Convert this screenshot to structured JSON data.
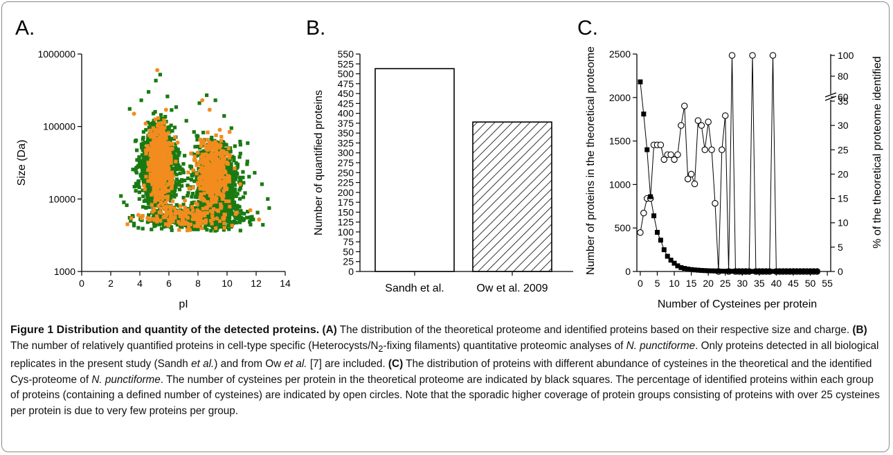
{
  "chart_data": [
    {
      "panel": "A.",
      "type": "scatter",
      "xlabel": "pI",
      "ylabel": "Size (Da)",
      "xlim": [
        0,
        14
      ],
      "ylim": [
        1000,
        1000000
      ],
      "yscale": "log",
      "xticks": [
        "0",
        "2",
        "4",
        "6",
        "8",
        "10",
        "12",
        "14"
      ],
      "yticks": [
        "1000",
        "10000",
        "100000",
        "1000000"
      ],
      "series": [
        {
          "color": "#1a7a12",
          "points": [
            [
              3.3,
              175000
            ],
            [
              4.1,
              230000
            ],
            [
              4.6,
              300000
            ],
            [
              5.1,
              430000
            ],
            [
              5.4,
              520000
            ],
            [
              5.9,
              260000
            ],
            [
              6.5,
              185000
            ],
            [
              7.2,
              120000
            ],
            [
              8.1,
              210000
            ],
            [
              8.6,
              270000
            ],
            [
              9.2,
              230000
            ],
            [
              9.8,
              140000
            ],
            [
              10.3,
              95000
            ],
            [
              10.9,
              62000
            ],
            [
              11.4,
              33000
            ],
            [
              11.9,
              23000
            ],
            [
              12.4,
              16000
            ],
            [
              12.8,
              10000
            ],
            [
              12.9,
              7500
            ],
            [
              2.7,
              11000
            ],
            [
              2.9,
              9000
            ],
            [
              3.1,
              8200
            ],
            [
              3.3,
              5500
            ],
            [
              3.6,
              4300
            ],
            [
              3.9,
              4000
            ],
            [
              4.2,
              3900
            ],
            [
              4.8,
              3800
            ],
            [
              5.5,
              3900
            ],
            [
              6.2,
              3700
            ],
            [
              6.9,
              4100
            ],
            [
              7.6,
              4200
            ],
            [
              8.0,
              3800
            ],
            [
              8.5,
              4000
            ],
            [
              9.1,
              4200
            ],
            [
              9.7,
              4300
            ],
            [
              10.4,
              4600
            ],
            [
              11.0,
              5100
            ],
            [
              11.6,
              5600
            ],
            [
              12.1,
              6500
            ]
          ]
        },
        {
          "color": "#f28c1e",
          "points": [
            [
              3.6,
              150000
            ],
            [
              4.4,
              110000
            ],
            [
              5.2,
              600000
            ],
            [
              5.8,
              170000
            ],
            [
              6.6,
              60000
            ],
            [
              7.4,
              14000
            ],
            [
              8.3,
              230000
            ],
            [
              8.8,
              170000
            ],
            [
              9.5,
              90000
            ],
            [
              10.2,
              40000
            ],
            [
              10.9,
              16000
            ],
            [
              11.6,
              7000
            ],
            [
              12.2,
              5200
            ],
            [
              3.9,
              6000
            ],
            [
              4.6,
              5200
            ],
            [
              5.7,
              5800
            ],
            [
              7.1,
              9500
            ],
            [
              8.0,
              5000
            ],
            [
              9.3,
              5400
            ],
            [
              10.6,
              6200
            ]
          ]
        }
      ]
    },
    {
      "panel": "B.",
      "type": "bar",
      "categories": [
        "Sandh et al.",
        "Ow et al. 2009"
      ],
      "values": [
        513,
        378
      ],
      "ylabel": "Number of quantified proteins",
      "ylim": [
        0,
        550
      ],
      "yticks": [
        "0",
        "25",
        "50",
        "75",
        "100",
        "125",
        "150",
        "175",
        "200",
        "225",
        "250",
        "275",
        "300",
        "325",
        "350",
        "375",
        "400",
        "425",
        "450",
        "475",
        "500",
        "525",
        "550"
      ]
    },
    {
      "panel": "C.",
      "type": "line",
      "xlabel": "Number of Cysteines per protein",
      "ylabel": "Number of proteins in the theoretical proteome",
      "ylabel_right": "% of the theoretical proteome identified",
      "xlim": [
        -1,
        56
      ],
      "ylim": [
        0,
        2500
      ],
      "xticks": [
        "0",
        "5",
        "10",
        "15",
        "20",
        "25",
        "30",
        "35",
        "40",
        "45",
        "50",
        "55"
      ],
      "yticks": [
        "0",
        "500",
        "1000",
        "1500",
        "2000",
        "2500"
      ],
      "yticks_right": [
        "0",
        "5",
        "10",
        "15",
        "20",
        "25",
        "30",
        "35",
        "60",
        "80",
        "100"
      ],
      "series": [
        {
          "marker": "filled-square",
          "x": [
            0,
            1,
            2,
            3,
            4,
            5,
            6,
            7,
            8,
            9,
            10,
            11,
            12,
            13,
            14,
            15,
            16,
            17,
            18,
            19,
            20,
            21,
            22,
            23,
            24,
            25,
            26,
            27,
            28,
            29,
            30,
            31,
            32,
            33,
            34,
            35,
            36,
            37,
            38,
            39,
            40,
            41,
            42,
            43,
            44,
            45,
            46,
            47,
            48,
            49,
            50,
            51,
            52
          ],
          "values": [
            2180,
            1810,
            1400,
            860,
            640,
            450,
            360,
            250,
            175,
            130,
            95,
            65,
            45,
            35,
            28,
            22,
            18,
            15,
            12,
            10,
            8,
            7,
            6,
            5,
            4,
            3,
            3,
            2,
            2,
            2,
            1,
            1,
            1,
            1,
            1,
            1,
            1,
            1,
            1,
            1,
            1,
            1,
            1,
            1,
            1,
            1,
            1,
            1,
            1,
            1,
            1,
            1,
            1
          ]
        },
        {
          "marker": "open-circle",
          "x": [
            0,
            1,
            2,
            3,
            4,
            5,
            6,
            7,
            8,
            9,
            10,
            11,
            12,
            13,
            14,
            15,
            16,
            17,
            18,
            19,
            20,
            21,
            22,
            23,
            24,
            25,
            26,
            27,
            28,
            29,
            30,
            31,
            32,
            33,
            34,
            35,
            36,
            37,
            38,
            39,
            40,
            41,
            42,
            43,
            44,
            45,
            46,
            47,
            48,
            49,
            50,
            51,
            52
          ],
          "values": [
            8,
            12,
            15,
            15,
            26,
            26,
            26,
            23,
            24,
            24,
            23,
            24,
            30,
            34,
            19,
            20,
            18,
            31,
            30,
            25,
            36,
            25,
            14,
            0,
            25,
            42,
            0,
            100,
            0,
            0,
            0,
            0,
            0,
            100,
            0,
            0,
            0,
            0,
            0,
            100,
            0,
            0,
            0,
            0,
            0,
            0,
            0,
            0,
            0,
            0,
            0,
            0,
            0
          ]
        }
      ]
    }
  ],
  "caption": {
    "title": "Figure 1 Distribution and quantity of the detected proteins.",
    "a_label": "(A)",
    "a_text": "The distribution of the theoretical proteome and identified proteins based on their respective size and charge.",
    "b_label": "(B)",
    "b_text_1": "The number of relatively quantified proteins in cell-type specific (Heterocysts/N",
    "b_sub": "2",
    "b_text_2": "-fixing filaments) quantitative proteomic analyses of",
    "species": "N. punctiforme",
    "b_text_3": ". Only proteins detected in all biological replicates in the present study (Sandh",
    "et_al": "et al.",
    "b_text_4": ") and from Ow",
    "et_al_2": "et al.",
    "b_text_5": "[7] are included.",
    "c_label": "(C)",
    "c_text_1": "The distribution of proteins with different abundance of cysteines in the theoretical and the identified Cys-proteome of",
    "species_2": "N. punctiforme",
    "c_text_2": ". The number of cysteines per protein in the theoretical proteome are indicated by black squares. The percentage of identified proteins within each group of proteins (containing a defined number of cysteines) are indicated by open circles. Note that the sporadic higher coverage of protein groups consisting of proteins with over 25 cysteines per protein is due to very few proteins per group."
  }
}
